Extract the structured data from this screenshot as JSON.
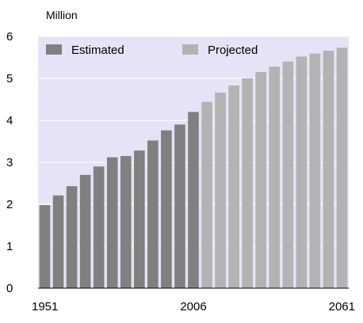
{
  "chart_data": {
    "type": "bar",
    "title": "",
    "xlabel": "",
    "ylabel": "Million",
    "ylim": [
      0,
      6
    ],
    "yticks": [
      "0",
      "1",
      "2",
      "3",
      "4",
      "5",
      "6"
    ],
    "xtick_labels": [
      "1951",
      "2006",
      "2061"
    ],
    "categories": [
      "1951",
      "1956",
      "1961",
      "1966",
      "1971",
      "1976",
      "1981",
      "1986",
      "1991",
      "1996",
      "2001",
      "2006",
      "2011",
      "2016",
      "2021",
      "2026",
      "2031",
      "2036",
      "2041",
      "2046",
      "2051",
      "2056",
      "2061"
    ],
    "series": [
      {
        "name": "Estimated",
        "color": "#808080",
        "values": [
          1.98,
          2.21,
          2.43,
          2.7,
          2.9,
          3.12,
          3.15,
          3.28,
          3.52,
          3.76,
          3.9,
          4.2,
          null,
          null,
          null,
          null,
          null,
          null,
          null,
          null,
          null,
          null,
          null
        ]
      },
      {
        "name": "Projected",
        "color": "#b3b3b3",
        "values": [
          null,
          null,
          null,
          null,
          null,
          null,
          null,
          null,
          null,
          null,
          null,
          null,
          4.44,
          4.66,
          4.83,
          5.0,
          5.15,
          5.28,
          5.4,
          5.52,
          5.59,
          5.66,
          5.73
        ]
      }
    ],
    "plot_background": "#e4e4f6",
    "legend_position": "top-left",
    "grid": true,
    "grid_color": "#ffffff"
  }
}
